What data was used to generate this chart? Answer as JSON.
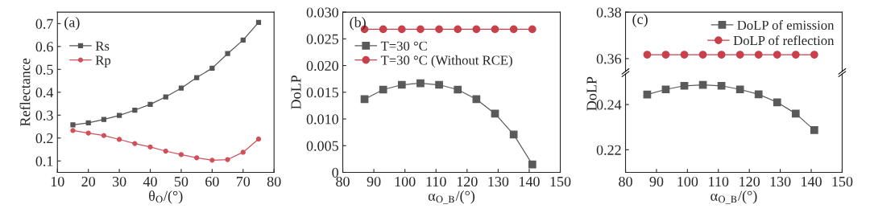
{
  "chart_data": [
    {
      "type": "line",
      "title": "(a)",
      "xlabel": "θ$_{O}$/(°)",
      "ylabel": "Reflectance",
      "xlim": [
        10,
        80
      ],
      "xticks": [
        10,
        20,
        30,
        40,
        50,
        60,
        70,
        80
      ],
      "ylim": [
        0.05,
        0.75
      ],
      "yticks": [
        0.1,
        0.2,
        0.3,
        0.4,
        0.5,
        0.6,
        0.7
      ],
      "legend": "top left",
      "grid": false,
      "x": [
        15,
        20,
        25,
        30,
        35,
        40,
        45,
        50,
        55,
        60,
        65,
        70,
        75
      ],
      "series": [
        {
          "name": "Rs",
          "color": "#555555",
          "marker": "square",
          "values": [
            0.258,
            0.266,
            0.281,
            0.299,
            0.322,
            0.347,
            0.38,
            0.418,
            0.464,
            0.505,
            0.569,
            0.628,
            0.705
          ]
        },
        {
          "name": "Rp",
          "color": "#d0505a",
          "marker": "circle",
          "values": [
            0.233,
            0.222,
            0.211,
            0.194,
            0.176,
            0.161,
            0.143,
            0.128,
            0.114,
            0.103,
            0.106,
            0.138,
            0.196
          ]
        }
      ]
    },
    {
      "type": "line",
      "title": "(b)",
      "xlabel": "α$_{O_B}$/(°)",
      "ylabel": "DoLP",
      "xlim": [
        80,
        150
      ],
      "xticks": [
        80,
        90,
        100,
        110,
        120,
        130,
        140,
        150
      ],
      "ylim": [
        0,
        0.03
      ],
      "yticks": [
        0,
        0.005,
        {
          "value": 0.01,
          "label": "0.010"
        },
        0.015,
        {
          "value": 0.02,
          "label": "0.020"
        },
        0.025,
        {
          "value": 0.03,
          "label": "0.030"
        }
      ],
      "legend": "top left",
      "grid": false,
      "x": [
        87,
        93,
        99,
        105,
        111,
        117,
        123,
        129,
        135,
        141
      ],
      "series": [
        {
          "name": "T=30 °C",
          "color": "#5a5a5a",
          "marker": "square",
          "values": [
            0.0137,
            0.0155,
            0.0164,
            0.0167,
            0.0164,
            0.0155,
            0.0137,
            0.011,
            0.0071,
            0.0015
          ]
        },
        {
          "name": "T=30 °C (Without RCE)",
          "color": "#c8404a",
          "marker": "circle",
          "values": [
            0.0268,
            0.0268,
            0.0268,
            0.0268,
            0.0268,
            0.0268,
            0.0268,
            0.0268,
            0.0268,
            0.0268
          ]
        }
      ]
    },
    {
      "type": "line",
      "title": "(c)",
      "xlim": [
        80,
        150
      ],
      "ylim": [
        0.3545,
        0.38
      ],
      "yticks": [
        0.36,
        0.38
      ],
      "tick_labels": "y",
      "legend": "top right",
      "grid": false,
      "x": [
        87,
        93,
        99,
        105,
        111,
        117,
        123,
        129,
        135,
        141
      ],
      "series": [
        {
          "name": "DoLP of reflection",
          "color": "#c8404a",
          "marker": "circle",
          "values": [
            0.3617,
            0.3617,
            0.3617,
            0.3617,
            0.3617,
            0.3617,
            0.3617,
            0.3617,
            0.3617,
            0.3617
          ]
        }
      ]
    },
    {
      "type": "line",
      "xlabel": "α$_{O_B}$/(°)",
      "ylabel": "DoLP",
      "xlim": [
        80,
        150
      ],
      "xticks": [
        80,
        90,
        100,
        110,
        120,
        130,
        140,
        150
      ],
      "ylim": [
        0.21,
        0.2535
      ],
      "yticks": [
        0.22,
        0.24
      ],
      "legend": "top right",
      "grid": false,
      "x": [
        87,
        93,
        99,
        105,
        111,
        117,
        123,
        129,
        135,
        141
      ],
      "series": [
        {
          "name": "DoLP of emission",
          "color": "#5a5a5a",
          "marker": "square",
          "values": [
            0.2444,
            0.2467,
            0.2483,
            0.2487,
            0.2483,
            0.2467,
            0.2445,
            0.241,
            0.236,
            0.2287
          ]
        }
      ]
    }
  ]
}
